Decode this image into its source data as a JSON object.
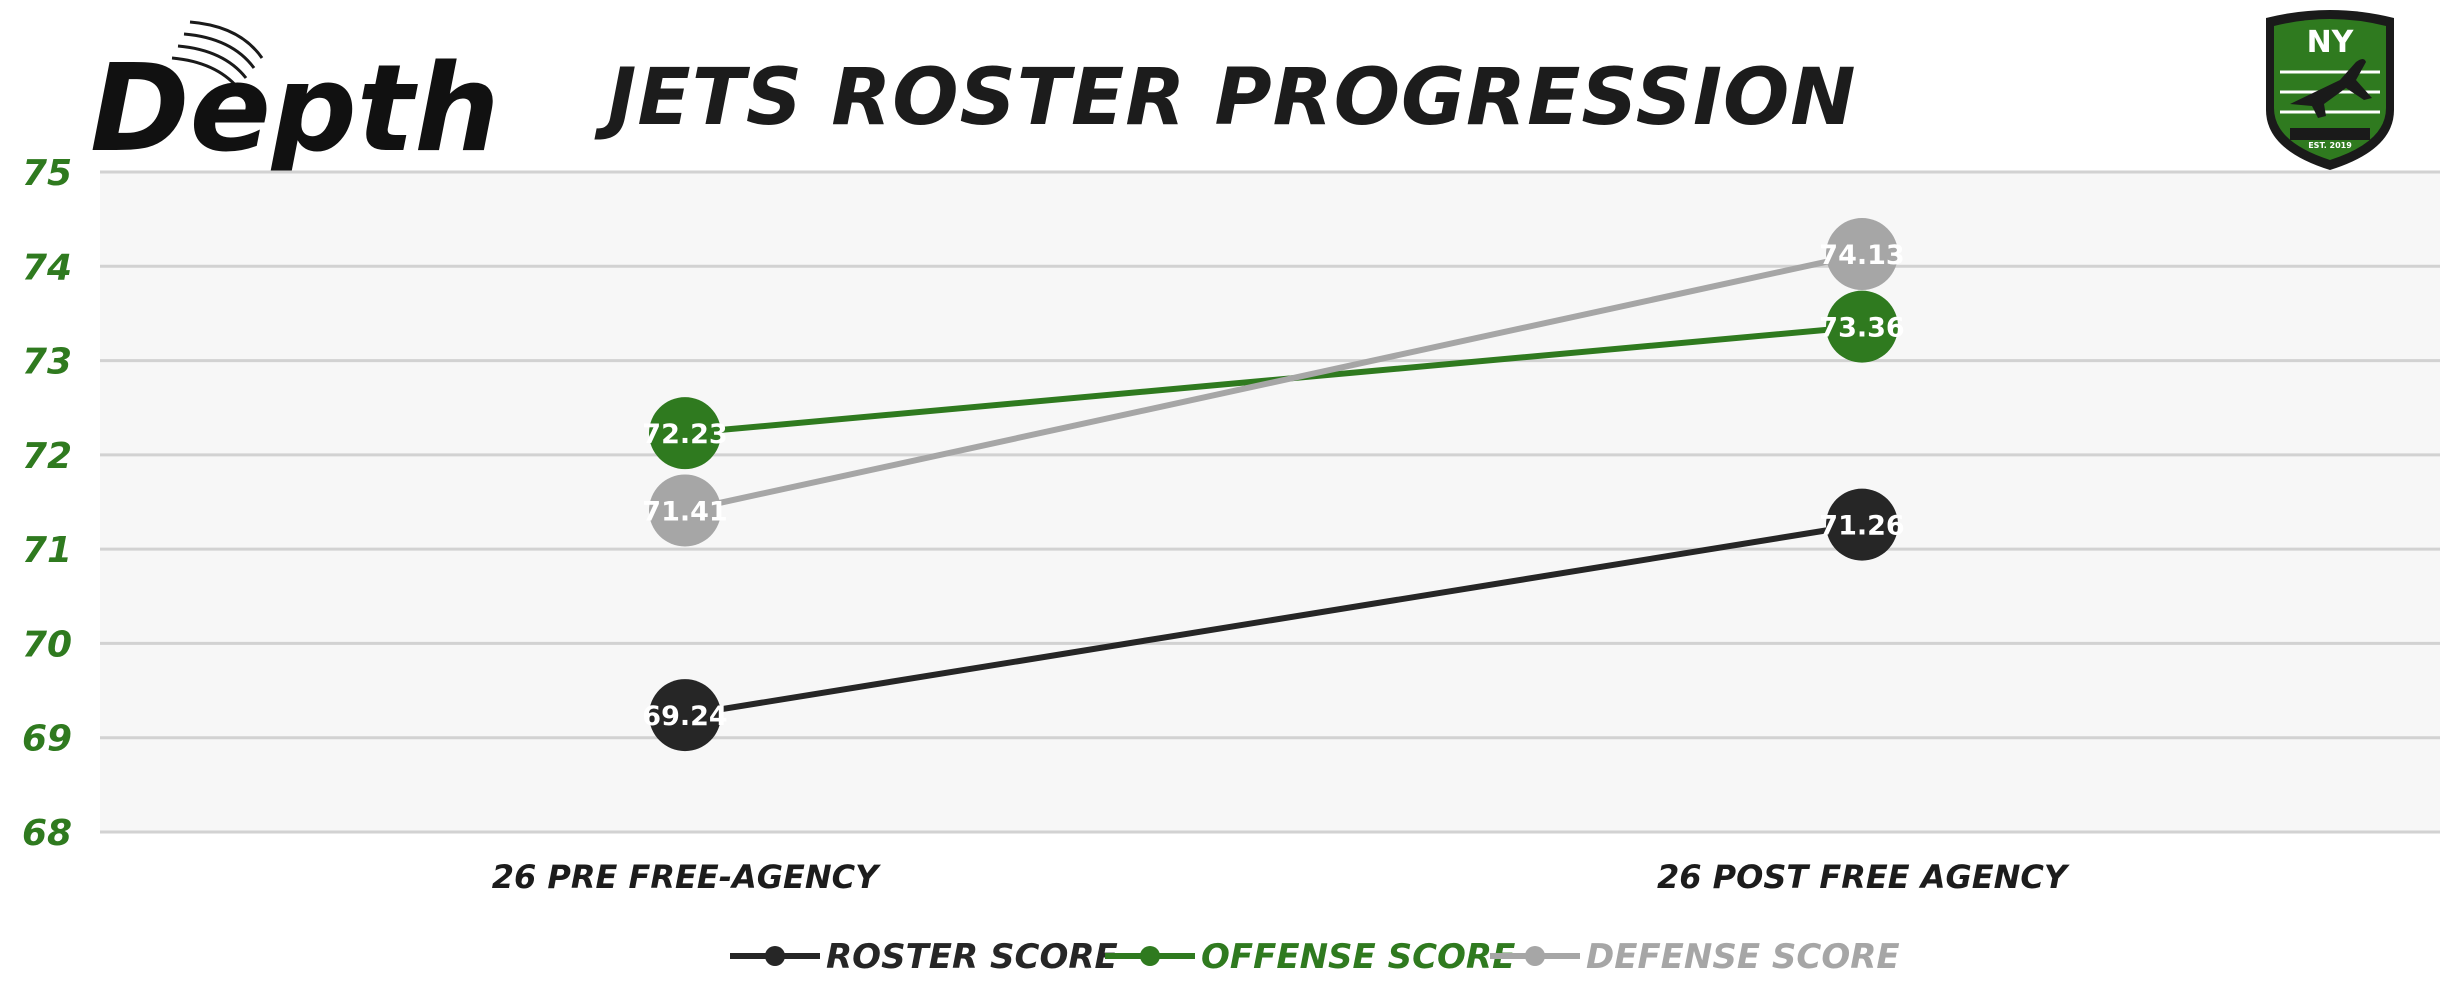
{
  "logo_left": {
    "text": "Depth"
  },
  "logo_right": {
    "text": "NY",
    "subtext": "EST. 2019"
  },
  "colors": {
    "roster": "#262626",
    "offense": "#2f7a1f",
    "defense": "#a6a6a6",
    "plot_bg": "#f7f7f7",
    "grid": "#d2d2d2",
    "ytick": "#2f7a1f"
  },
  "chart_data": {
    "type": "line",
    "title": "JETS ROSTER PROGRESSION",
    "categories": [
      "26 PRE FREE-AGENCY",
      "26 POST FREE AGENCY"
    ],
    "ylim": [
      68,
      75
    ],
    "yticks": [
      68,
      69,
      70,
      71,
      72,
      73,
      74,
      75
    ],
    "grid": true,
    "legend_position": "bottom",
    "series": [
      {
        "name": "ROSTER SCORE",
        "color": "#262626",
        "values": [
          69.24,
          71.26
        ]
      },
      {
        "name": "OFFENSE SCORE",
        "color": "#2f7a1f",
        "values": [
          72.23,
          73.36
        ]
      },
      {
        "name": "DEFENSE SCORE",
        "color": "#a6a6a6",
        "values": [
          71.41,
          74.13
        ]
      }
    ]
  }
}
